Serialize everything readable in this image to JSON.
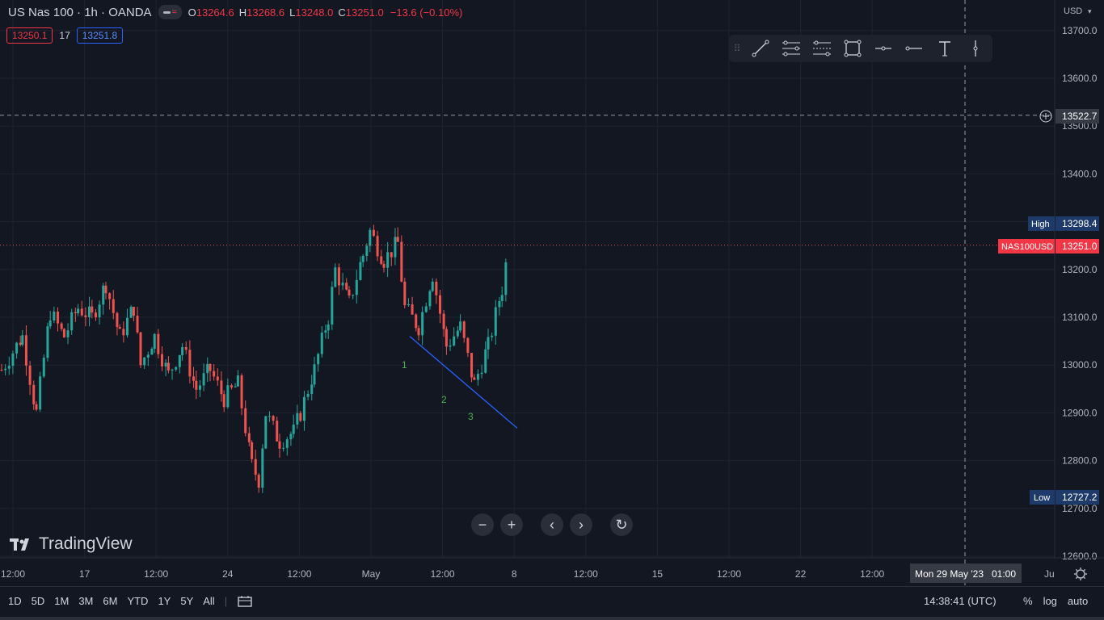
{
  "header": {
    "symbol": "US Nas 100 · 1h · OANDA",
    "ohlc": {
      "o_label": "O",
      "o": "13264.6",
      "h_label": "H",
      "h": "13268.6",
      "l_label": "L",
      "l": "13248.0",
      "c_label": "C",
      "c": "13251.0"
    },
    "change": "−13.6 (−0.10%)",
    "bid": "13250.1",
    "spread": "17",
    "ask": "13251.8"
  },
  "price_axis": {
    "currency": "USD",
    "crosshair_price": "13522.7",
    "high_label": "High",
    "high_value": "13298.4",
    "symbol_tag": "NAS100USD",
    "last_value": "13251.0",
    "low_label": "Low",
    "low_value": "12727.2"
  },
  "time_axis": {
    "crosshair_time": "Mon 29 May '23   01:00",
    "end_label": "Ju"
  },
  "annotations": [
    {
      "text": "1"
    },
    {
      "text": "2"
    },
    {
      "text": "3"
    }
  ],
  "drawing_toolbar": {
    "tools": [
      "trend-line-icon",
      "parallel-channel-icon",
      "pitchfork-icon",
      "rectangle-icon",
      "horizontal-ray-icon",
      "horizontal-line-icon",
      "text-icon",
      "vertical-line-icon"
    ]
  },
  "nav_controls": {
    "zoom_out": "−",
    "zoom_in": "+",
    "back": "‹",
    "forward": "›",
    "reset": "↻"
  },
  "branding": {
    "name": "TradingView"
  },
  "bottom_bar": {
    "ranges": [
      "1D",
      "5D",
      "1M",
      "3M",
      "6M",
      "YTD",
      "1Y",
      "5Y",
      "All"
    ],
    "clock": "14:38:41 (UTC)",
    "percent": "%",
    "log": "log",
    "auto": "auto"
  },
  "colors": {
    "up": "#26a69a",
    "down": "#ef5350",
    "bg": "#131722",
    "grid": "#1f2330",
    "trendline": "#2962ff",
    "annotation": "#4caf50"
  },
  "chart_data": {
    "type": "candlestick",
    "ylim": [
      12600,
      13750
    ],
    "yticks": [
      12600,
      12700,
      12800,
      12900,
      13000,
      13100,
      13200,
      13300,
      13400,
      13500,
      13600,
      13700
    ],
    "xticks": [
      "12:00",
      "17",
      "12:00",
      "24",
      "12:00",
      "May",
      "12:00",
      "8",
      "12:00",
      "15",
      "12:00",
      "22",
      "12:00"
    ],
    "high": 13298.4,
    "low": 12727.2,
    "last": 13251.0,
    "crosshair_price": 13522.7,
    "trend_line": [
      {
        "x": "May 3 12:00",
        "y": 13060
      },
      {
        "x": "May 7 20:00",
        "y": 12868
      }
    ],
    "close_path": [
      [
        0,
        12990
      ],
      [
        1.5,
        13060
      ],
      [
        2.5,
        12900
      ],
      [
        3.5,
        13110
      ],
      [
        4.5,
        13060
      ],
      [
        5.5,
        13120
      ],
      [
        6.5,
        13100
      ],
      [
        7.5,
        13170
      ],
      [
        8.5,
        13060
      ],
      [
        9.5,
        13120
      ],
      [
        10,
        13000
      ],
      [
        11,
        13060
      ],
      [
        12,
        12980
      ],
      [
        13,
        13040
      ],
      [
        14,
        12950
      ],
      [
        15,
        12990
      ],
      [
        16,
        12930
      ],
      [
        17,
        12960
      ],
      [
        18,
        12790
      ],
      [
        18.5,
        12760
      ],
      [
        19,
        12900
      ],
      [
        20,
        12840
      ],
      [
        21,
        12860
      ],
      [
        21.5,
        12900
      ],
      [
        22.5,
        12990
      ],
      [
        23.5,
        13100
      ],
      [
        24,
        13200
      ],
      [
        25,
        13130
      ],
      [
        26,
        13230
      ],
      [
        26.5,
        13280
      ],
      [
        27.5,
        13220
      ],
      [
        28.5,
        13255
      ],
      [
        29,
        13120
      ],
      [
        30,
        13080
      ],
      [
        31,
        13190
      ],
      [
        32,
        13040
      ],
      [
        33,
        13080
      ],
      [
        34,
        12960
      ],
      [
        35,
        13040
      ],
      [
        36,
        13160
      ],
      [
        36.5,
        13255
      ]
    ],
    "x_domain": [
      0,
      78
    ]
  }
}
